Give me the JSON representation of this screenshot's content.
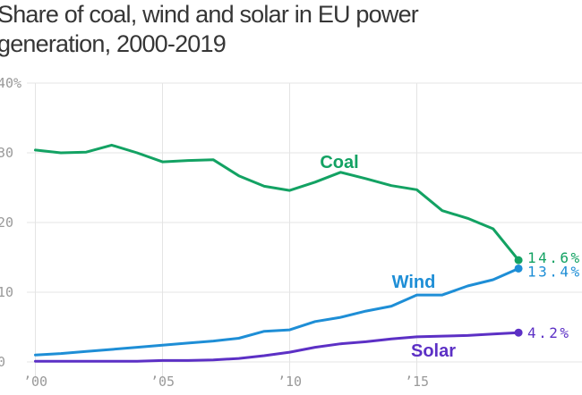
{
  "title": "Share of coal, wind and solar in EU power generation, 2000-2019",
  "colors": {
    "coal": "#13a263",
    "wind": "#1e8ed6",
    "solar": "#5c30c5",
    "title_text": "#363636",
    "axis_text": "#9a9a9a",
    "gridline": "#e4e4e4",
    "background": "#ffffff"
  },
  "chart_data": {
    "type": "line",
    "title": "Share of coal, wind and solar in EU power generation, 2000-2019",
    "x": [
      2000,
      2001,
      2002,
      2003,
      2004,
      2005,
      2006,
      2007,
      2008,
      2009,
      2010,
      2011,
      2012,
      2013,
      2014,
      2015,
      2016,
      2017,
      2018,
      2019
    ],
    "series": [
      {
        "name": "Coal",
        "color_key": "coal",
        "values": [
          30.4,
          30.0,
          30.1,
          31.1,
          30.0,
          28.7,
          28.9,
          29.0,
          26.7,
          25.2,
          24.6,
          25.8,
          27.2,
          26.3,
          25.3,
          24.7,
          21.7,
          20.6,
          19.1,
          14.6
        ],
        "end_label": "14.6%"
      },
      {
        "name": "Wind",
        "color_key": "wind",
        "values": [
          1.0,
          1.2,
          1.5,
          1.8,
          2.1,
          2.4,
          2.7,
          3.0,
          3.4,
          4.4,
          4.6,
          5.8,
          6.4,
          7.3,
          8.0,
          9.6,
          9.6,
          10.9,
          11.8,
          13.4
        ],
        "end_label": "13.4%"
      },
      {
        "name": "Solar",
        "color_key": "solar",
        "values": [
          0.1,
          0.1,
          0.1,
          0.1,
          0.1,
          0.2,
          0.2,
          0.3,
          0.5,
          0.9,
          1.4,
          2.1,
          2.6,
          2.9,
          3.3,
          3.6,
          3.7,
          3.8,
          4.0,
          4.2
        ],
        "end_label": "4.2%"
      }
    ],
    "xlabel": "",
    "ylabel": "",
    "ylim": [
      0,
      40
    ],
    "xlim": [
      2000,
      2019
    ],
    "grid": true,
    "legend": "inline series labels and end-value labels",
    "y_ticks": [
      {
        "value": 40,
        "label": "40%"
      },
      {
        "value": 30,
        "label": "30"
      },
      {
        "value": 20,
        "label": "20"
      },
      {
        "value": 10,
        "label": "10"
      },
      {
        "value": 0,
        "label": "0"
      }
    ],
    "x_ticks": [
      {
        "value": 2000,
        "label": "’00"
      },
      {
        "value": 2005,
        "label": "’05"
      },
      {
        "value": 2010,
        "label": "’10"
      },
      {
        "value": 2015,
        "label": "’15"
      }
    ]
  }
}
